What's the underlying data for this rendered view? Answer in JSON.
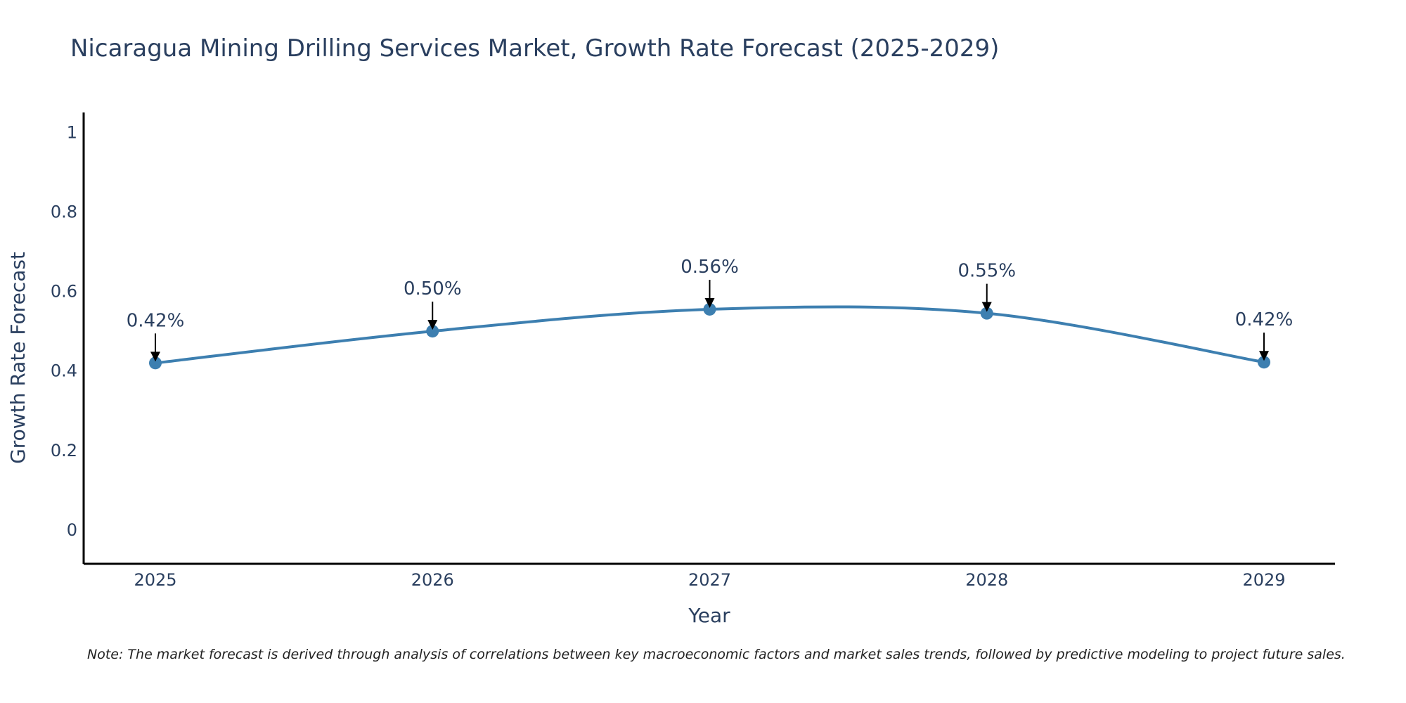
{
  "chart_data": {
    "type": "line",
    "title": "Nicaragua Mining Drilling Services Market, Growth Rate Forecast (2025-2029)",
    "xlabel": "Year",
    "ylabel": "Growth Rate Forecast",
    "categories": [
      "2025",
      "2026",
      "2027",
      "2028",
      "2029"
    ],
    "series": [
      {
        "name": "Growth Rate Forecast",
        "values": [
          0.42,
          0.5,
          0.555,
          0.545,
          0.422
        ]
      }
    ],
    "data_labels": [
      "0.42%",
      "0.50%",
      "0.56%",
      "0.55%",
      "0.42%"
    ],
    "ylim": [
      -0.085,
      1.05
    ],
    "yticks": [
      0,
      0.2,
      0.4,
      0.6,
      0.8,
      1
    ],
    "ytick_labels": [
      "0",
      "0.2",
      "0.4",
      "0.6",
      "0.8",
      "1"
    ],
    "line_shape": "spline",
    "grid": false,
    "colors": {
      "line": "#3d7fb0",
      "marker": "#3d7fb0",
      "axis": "#000000",
      "arrow": "#000000"
    }
  },
  "note": "Note: The market forecast is derived through analysis of correlations between key macroeconomic factors and market sales trends, followed by predictive modeling to project future sales."
}
